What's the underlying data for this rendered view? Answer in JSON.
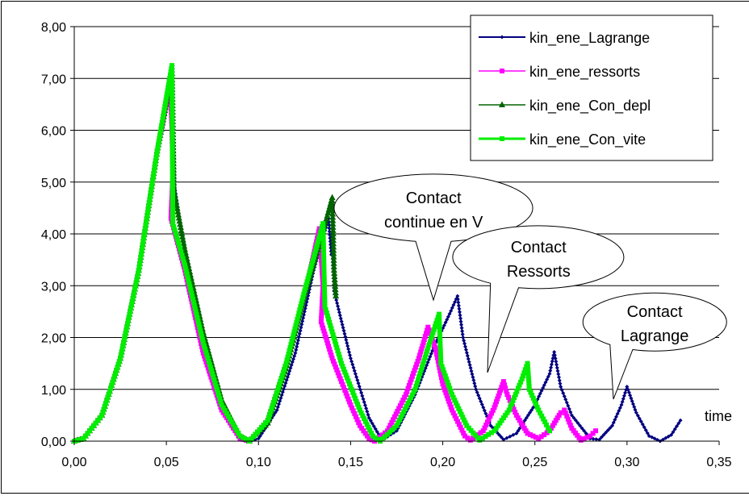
{
  "chart_data": {
    "type": "line",
    "title": "",
    "xlabel": "time",
    "ylabel": "",
    "xlim": [
      0,
      0.35
    ],
    "ylim": [
      0,
      8
    ],
    "x_ticks": [
      "0,00",
      "0,05",
      "0,10",
      "0,15",
      "0,20",
      "0,25",
      "0,30",
      "0,35"
    ],
    "y_ticks": [
      "0,00",
      "1,00",
      "2,00",
      "3,00",
      "4,00",
      "5,00",
      "6,00",
      "7,00",
      "8,00"
    ],
    "grid": "horizontal",
    "legend_position": "top-right",
    "series": [
      {
        "name": "kin_ene_Lagrange",
        "color": "#00007f",
        "marker": "diamond",
        "points": [
          [
            0,
            0
          ],
          [
            0.005,
            0.05
          ],
          [
            0.015,
            0.5
          ],
          [
            0.025,
            1.6
          ],
          [
            0.035,
            3.3
          ],
          [
            0.045,
            5.6
          ],
          [
            0.0535,
            7.25
          ],
          [
            0.0545,
            4.9
          ],
          [
            0.06,
            3.6
          ],
          [
            0.07,
            2.0
          ],
          [
            0.08,
            0.8
          ],
          [
            0.09,
            0.1
          ],
          [
            0.095,
            0.0
          ],
          [
            0.1,
            0.05
          ],
          [
            0.11,
            0.6
          ],
          [
            0.12,
            1.7
          ],
          [
            0.13,
            3.3
          ],
          [
            0.138,
            4.3
          ],
          [
            0.1395,
            3.6
          ],
          [
            0.14,
            4.0
          ],
          [
            0.141,
            2.9
          ],
          [
            0.15,
            1.6
          ],
          [
            0.16,
            0.45
          ],
          [
            0.167,
            0.02
          ],
          [
            0.175,
            0.2
          ],
          [
            0.185,
            0.9
          ],
          [
            0.195,
            1.8
          ],
          [
            0.203,
            2.4
          ],
          [
            0.208,
            2.8
          ],
          [
            0.211,
            2.0
          ],
          [
            0.218,
            1.0
          ],
          [
            0.226,
            0.3
          ],
          [
            0.233,
            0.03
          ],
          [
            0.24,
            0.15
          ],
          [
            0.25,
            0.7
          ],
          [
            0.258,
            1.3
          ],
          [
            0.2605,
            1.72
          ],
          [
            0.264,
            1.05
          ],
          [
            0.27,
            0.5
          ],
          [
            0.28,
            0.05
          ],
          [
            0.285,
            0.03
          ],
          [
            0.292,
            0.3
          ],
          [
            0.297,
            0.7
          ],
          [
            0.3,
            1.05
          ],
          [
            0.305,
            0.55
          ],
          [
            0.312,
            0.1
          ],
          [
            0.318,
            0.0
          ],
          [
            0.324,
            0.12
          ],
          [
            0.329,
            0.4
          ]
        ]
      },
      {
        "name": "kin_ene_ressorts",
        "color": "#ff00ff",
        "marker": "square",
        "points": [
          [
            0,
            0
          ],
          [
            0.005,
            0.05
          ],
          [
            0.015,
            0.5
          ],
          [
            0.025,
            1.6
          ],
          [
            0.035,
            3.3
          ],
          [
            0.045,
            5.6
          ],
          [
            0.052,
            6.9
          ],
          [
            0.053,
            6.05
          ],
          [
            0.0535,
            5.15
          ],
          [
            0.0525,
            4.3
          ],
          [
            0.06,
            3.3
          ],
          [
            0.07,
            1.7
          ],
          [
            0.08,
            0.6
          ],
          [
            0.09,
            0.05
          ],
          [
            0.095,
            0.0
          ],
          [
            0.105,
            0.4
          ],
          [
            0.115,
            1.5
          ],
          [
            0.125,
            2.8
          ],
          [
            0.133,
            4.1
          ],
          [
            0.135,
            3.0
          ],
          [
            0.134,
            2.3
          ],
          [
            0.14,
            1.6
          ],
          [
            0.15,
            0.7
          ],
          [
            0.155,
            0.3
          ],
          [
            0.16,
            0.05
          ],
          [
            0.163,
            0.0
          ],
          [
            0.17,
            0.2
          ],
          [
            0.18,
            0.9
          ],
          [
            0.187,
            1.6
          ],
          [
            0.192,
            2.2
          ],
          [
            0.196,
            1.8
          ],
          [
            0.2,
            1.1
          ],
          [
            0.205,
            0.6
          ],
          [
            0.212,
            0.1
          ],
          [
            0.215,
            0.02
          ],
          [
            0.222,
            0.2
          ],
          [
            0.228,
            0.65
          ],
          [
            0.233,
            1.15
          ],
          [
            0.235,
            0.9
          ],
          [
            0.24,
            0.5
          ],
          [
            0.246,
            0.15
          ],
          [
            0.252,
            0.05
          ],
          [
            0.258,
            0.2
          ],
          [
            0.264,
            0.55
          ],
          [
            0.266,
            0.6
          ],
          [
            0.27,
            0.25
          ],
          [
            0.275,
            0.02
          ],
          [
            0.28,
            0.1
          ],
          [
            0.283,
            0.2
          ]
        ]
      },
      {
        "name": "kin_ene_Con_depl",
        "color": "#006400",
        "marker": "triangle",
        "points": [
          [
            0,
            0
          ],
          [
            0.005,
            0.05
          ],
          [
            0.015,
            0.5
          ],
          [
            0.025,
            1.6
          ],
          [
            0.035,
            3.3
          ],
          [
            0.045,
            5.6
          ],
          [
            0.053,
            7.1
          ],
          [
            0.054,
            4.85
          ],
          [
            0.06,
            3.7
          ],
          [
            0.07,
            2.1
          ],
          [
            0.08,
            0.8
          ],
          [
            0.09,
            0.1
          ],
          [
            0.095,
            0.0
          ],
          [
            0.105,
            0.35
          ],
          [
            0.115,
            1.4
          ],
          [
            0.125,
            2.8
          ],
          [
            0.135,
            4.05
          ],
          [
            0.14,
            4.7
          ],
          [
            0.141,
            3.3
          ],
          [
            0.142,
            2.8
          ]
        ]
      },
      {
        "name": "kin_ene_Con_vite",
        "color": "#00ee00",
        "marker": "square",
        "points": [
          [
            0,
            0
          ],
          [
            0.005,
            0.05
          ],
          [
            0.015,
            0.5
          ],
          [
            0.025,
            1.6
          ],
          [
            0.035,
            3.3
          ],
          [
            0.045,
            5.6
          ],
          [
            0.053,
            7.25
          ],
          [
            0.0535,
            4.2
          ],
          [
            0.06,
            3.4
          ],
          [
            0.07,
            1.9
          ],
          [
            0.08,
            0.7
          ],
          [
            0.09,
            0.1
          ],
          [
            0.095,
            0.0
          ],
          [
            0.105,
            0.4
          ],
          [
            0.115,
            1.5
          ],
          [
            0.125,
            2.9
          ],
          [
            0.135,
            4.2
          ],
          [
            0.136,
            2.6
          ],
          [
            0.145,
            1.5
          ],
          [
            0.155,
            0.6
          ],
          [
            0.162,
            0.1
          ],
          [
            0.166,
            0.0
          ],
          [
            0.175,
            0.3
          ],
          [
            0.185,
            1.0
          ],
          [
            0.192,
            1.8
          ],
          [
            0.198,
            2.45
          ],
          [
            0.199,
            1.5
          ],
          [
            0.205,
            0.9
          ],
          [
            0.213,
            0.3
          ],
          [
            0.22,
            0.02
          ],
          [
            0.228,
            0.2
          ],
          [
            0.236,
            0.6
          ],
          [
            0.243,
            1.2
          ],
          [
            0.246,
            1.5
          ],
          [
            0.247,
            1.0
          ],
          [
            0.252,
            0.6
          ],
          [
            0.258,
            0.2
          ]
        ]
      }
    ],
    "annotations": [
      {
        "text": [
          "Contact",
          "continue en V"
        ],
        "x": 0.195,
        "y": 4.5
      },
      {
        "text": [
          "Contact",
          "Ressorts"
        ],
        "x": 0.252,
        "y": 3.55
      },
      {
        "text": [
          "Contact",
          "Lagrange"
        ],
        "x": 0.315,
        "y": 2.3
      }
    ]
  }
}
